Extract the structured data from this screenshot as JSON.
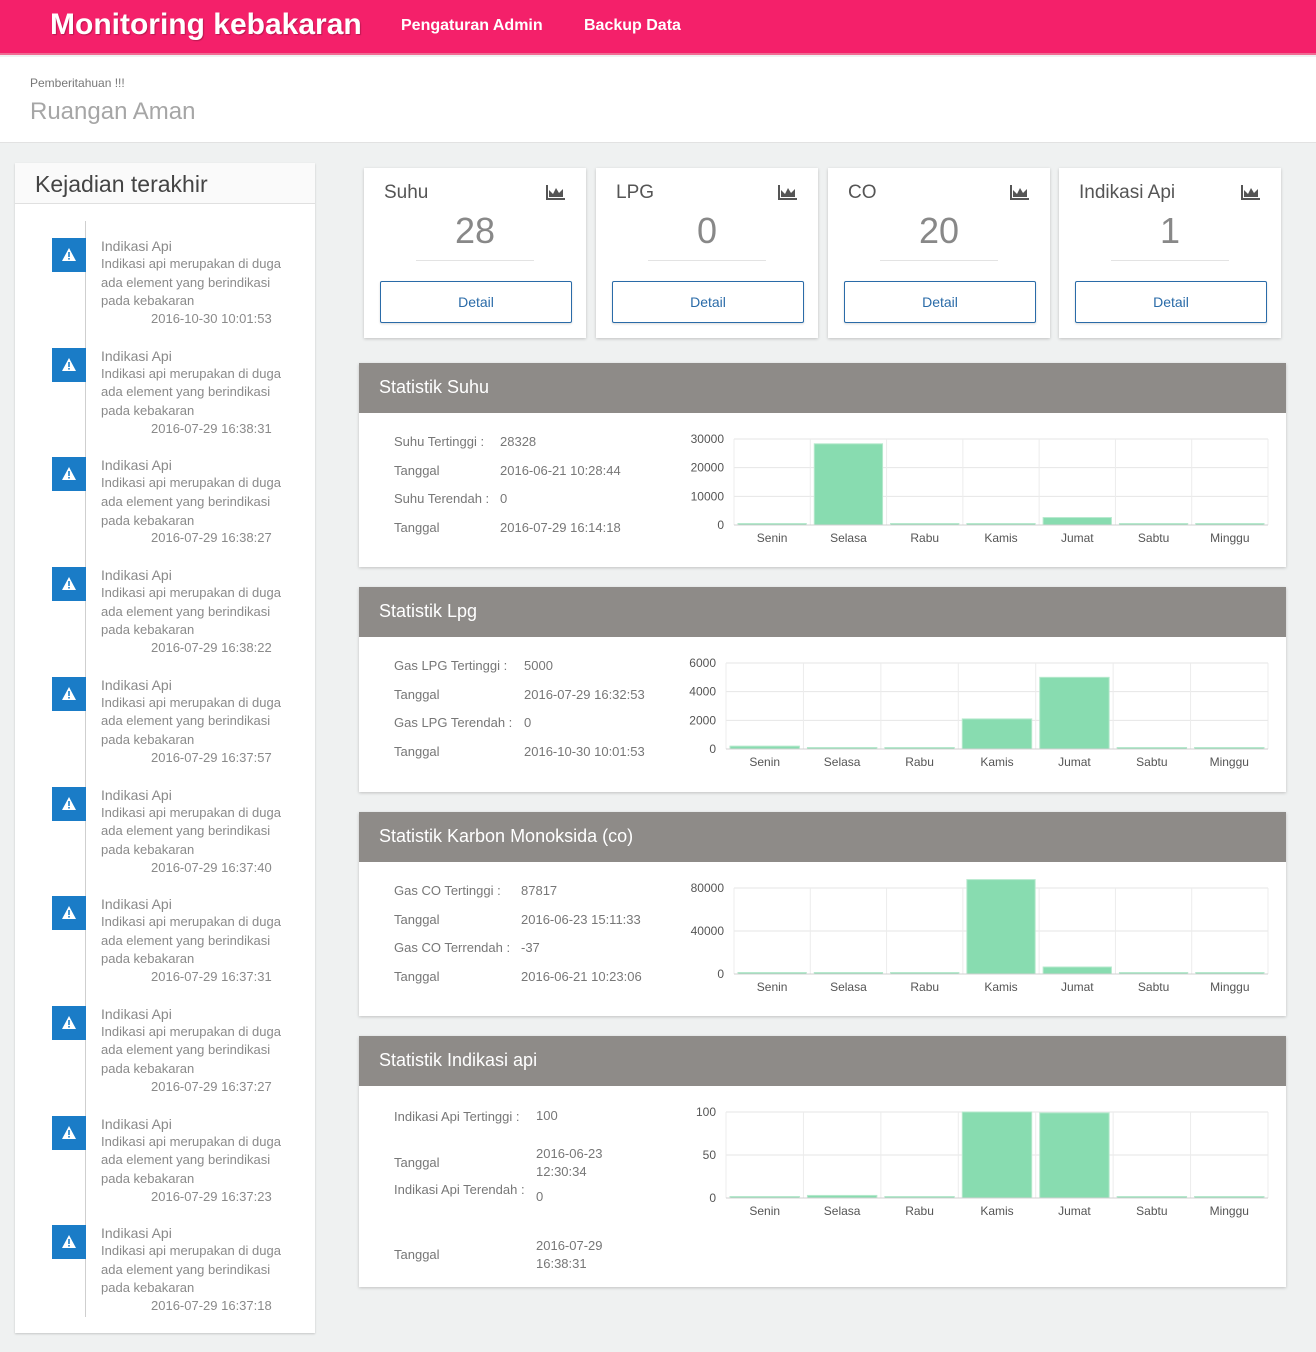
{
  "header": {
    "brand": "Monitoring kebakaran",
    "nav": [
      "Pengaturan Admin",
      "Backup Data"
    ]
  },
  "notice": {
    "label": "Pemberitahuan !!!",
    "status": "Ruangan Aman"
  },
  "recent": {
    "title": "Kejadian terakhir",
    "icon": "warning-icon",
    "events": [
      {
        "title": "Indikasi Api",
        "desc": "Indikasi api merupakan di duga ada element yang berindikasi pada kebakaran",
        "time": "2016-10-30 10:01:53"
      },
      {
        "title": "Indikasi Api",
        "desc": "Indikasi api merupakan di duga ada element yang berindikasi pada kebakaran",
        "time": "2016-07-29 16:38:31"
      },
      {
        "title": "Indikasi Api",
        "desc": "Indikasi api merupakan di duga ada element yang berindikasi pada kebakaran",
        "time": "2016-07-29 16:38:27"
      },
      {
        "title": "Indikasi Api",
        "desc": "Indikasi api merupakan di duga ada element yang berindikasi pada kebakaran",
        "time": "2016-07-29 16:38:22"
      },
      {
        "title": "Indikasi Api",
        "desc": "Indikasi api merupakan di duga ada element yang berindikasi pada kebakaran",
        "time": "2016-07-29 16:37:57"
      },
      {
        "title": "Indikasi Api",
        "desc": "Indikasi api merupakan di duga ada element yang berindikasi pada kebakaran",
        "time": "2016-07-29 16:37:40"
      },
      {
        "title": "Indikasi Api",
        "desc": "Indikasi api merupakan di duga ada element yang berindikasi pada kebakaran",
        "time": "2016-07-29 16:37:31"
      },
      {
        "title": "Indikasi Api",
        "desc": "Indikasi api merupakan di duga ada element yang berindikasi pada kebakaran",
        "time": "2016-07-29 16:37:27"
      },
      {
        "title": "Indikasi Api",
        "desc": "Indikasi api merupakan di duga ada element yang berindikasi pada kebakaran",
        "time": "2016-07-29 16:37:23"
      },
      {
        "title": "Indikasi Api",
        "desc": "Indikasi api merupakan di duga ada element yang berindikasi pada kebakaran",
        "time": "2016-07-29 16:37:18"
      }
    ]
  },
  "cards": [
    {
      "title": "Suhu",
      "value": "28",
      "button": "Detail",
      "icon": "area-chart-icon"
    },
    {
      "title": "LPG",
      "value": "0",
      "button": "Detail",
      "icon": "area-chart-icon"
    },
    {
      "title": "CO",
      "value": "20",
      "button": "Detail",
      "icon": "area-chart-icon"
    },
    {
      "title": "Indikasi Api",
      "value": "1",
      "button": "Detail",
      "icon": "area-chart-icon"
    }
  ],
  "panels": [
    {
      "title": "Statistik Suhu",
      "rows": [
        {
          "label": "Suhu Tertinggi :",
          "value": "28328"
        },
        {
          "label": "Tanggal",
          "value": "2016-06-21 10:28:44"
        },
        {
          "label": "Suhu Terendah :",
          "value": "0"
        },
        {
          "label": "Tanggal",
          "value": "2016-07-29 16:14:18"
        }
      ]
    },
    {
      "title": "Statistik Lpg",
      "rows": [
        {
          "label": "Gas LPG Tertinggi :",
          "value": "5000"
        },
        {
          "label": "Tanggal",
          "value": "2016-07-29 16:32:53"
        },
        {
          "label": "Gas LPG Terendah :",
          "value": "0"
        },
        {
          "label": "Tanggal",
          "value": "2016-10-30 10:01:53"
        }
      ]
    },
    {
      "title": "Statistik Karbon Monoksida (co)",
      "rows": [
        {
          "label": "Gas CO Tertinggi :",
          "value": "87817"
        },
        {
          "label": "Tanggal",
          "value": "2016-06-23 15:11:33"
        },
        {
          "label": "Gas CO Terrendah :",
          "value": "-37"
        },
        {
          "label": "Tanggal",
          "value": "2016-06-21 10:23:06"
        }
      ]
    },
    {
      "title": "Statistik Indikasi api",
      "rows": [
        {
          "label": "Indikasi Api Tertinggi :",
          "value": "100"
        },
        {
          "label": "Tanggal",
          "value": "2016-06-23 12:30:34"
        },
        {
          "label": "Indikasi Api Terendah :",
          "value": "0"
        },
        {
          "label": "Tanggal",
          "value": "2016-07-29 16:38:31"
        }
      ]
    }
  ],
  "colors": {
    "topbar": "#f4206a",
    "bar": "#88dcb0",
    "panel_head": "#8e8b88",
    "button": "#2a6ba8",
    "badge": "#1a7cc7"
  },
  "chart_data": [
    {
      "type": "bar",
      "categories": [
        "Senin",
        "Selasa",
        "Rabu",
        "Kamis",
        "Jumat",
        "Sabtu",
        "Minggu"
      ],
      "values": [
        100,
        28328,
        100,
        100,
        2600,
        100,
        100
      ],
      "ylim": [
        0,
        30000
      ],
      "yticks": [
        0,
        10000,
        20000,
        30000
      ],
      "grid": true
    },
    {
      "type": "bar",
      "categories": [
        "Senin",
        "Selasa",
        "Rabu",
        "Kamis",
        "Jumat",
        "Sabtu",
        "Minggu"
      ],
      "values": [
        200,
        100,
        50,
        2100,
        5000,
        60,
        60
      ],
      "ylim": [
        0,
        6000
      ],
      "yticks": [
        0,
        2000,
        4000,
        6000
      ],
      "grid": true
    },
    {
      "type": "bar",
      "categories": [
        "Senin",
        "Selasa",
        "Rabu",
        "Kamis",
        "Jumat",
        "Sabtu",
        "Minggu"
      ],
      "values": [
        500,
        500,
        500,
        87817,
        6500,
        500,
        500
      ],
      "ylim": [
        0,
        80000
      ],
      "yticks": [
        0,
        40000,
        80000
      ],
      "grid": true
    },
    {
      "type": "bar",
      "categories": [
        "Senin",
        "Selasa",
        "Rabu",
        "Kamis",
        "Jumat",
        "Sabtu",
        "Minggu"
      ],
      "values": [
        1,
        3,
        1,
        100,
        99,
        1,
        1
      ],
      "ylim": [
        0,
        100
      ],
      "yticks": [
        0,
        50,
        100
      ],
      "grid": true
    }
  ]
}
